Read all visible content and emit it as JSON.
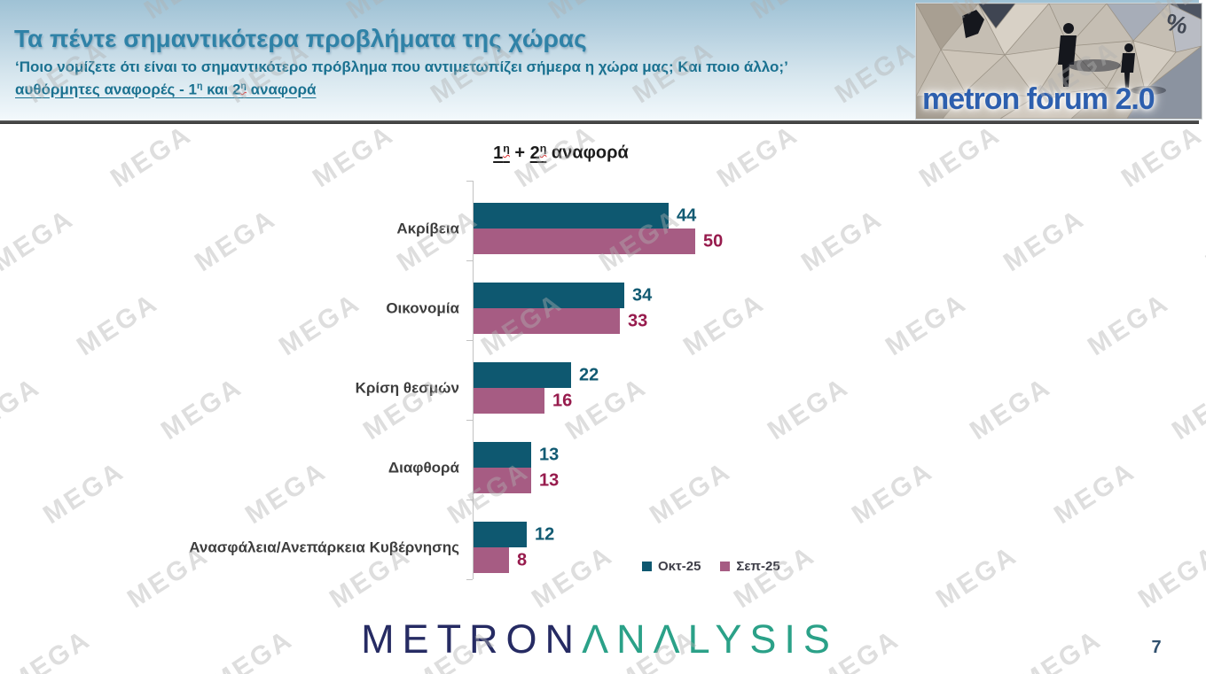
{
  "watermark": {
    "text": "MEGA"
  },
  "header": {
    "title": "Τα πέντε σημαντικότερα προβλήματα της χώρας",
    "subtitle": "‘Ποιο νομίζετε ότι είναι το σημαντικότερο πρόβλημα που αντιμετωπίζει σήμερα η χώρα μας; Και ποιο άλλο;’",
    "line3": {
      "prefix": "αυθόρμητες αναφορές - ",
      "n1": "1",
      "sup1": "η",
      "mid": " και ",
      "n2": "2",
      "sup2": "η",
      "rest": " αναφορά"
    }
  },
  "forum_logo": {
    "title": "metron forum 2.0",
    "percent_symbol": "%"
  },
  "chart_data": {
    "type": "bar",
    "orientation": "horizontal",
    "title": "1η + 2η αναφορά",
    "title_parts": {
      "n1": "1",
      "sup1": "η",
      "plus": " + ",
      "n2": "2",
      "sup2": "η",
      "rest": " αναφορά"
    },
    "categories": [
      "Ακρίβεια",
      "Οικονομία",
      "Κρίση θεσμών",
      "Διαφθορά",
      "Ανασφάλεια/Ανεπάρκεια Κυβέρνησης"
    ],
    "series": [
      {
        "name": "Οκτ-25",
        "color": "#0e5870",
        "value_color": "#115a72",
        "values": [
          44,
          34,
          22,
          13,
          12
        ]
      },
      {
        "name": "Σεπ-25",
        "color": "#a65c83",
        "value_color": "#971b4d",
        "values": [
          50,
          33,
          16,
          13,
          8
        ]
      }
    ],
    "value_labels": true,
    "grid": false,
    "xlim": [
      0,
      64
    ],
    "legend_position": "bottom-right"
  },
  "footer": {
    "brand_primary": "METRON",
    "brand_secondary": "ΛNΛLYSIS",
    "page_number": "7"
  }
}
